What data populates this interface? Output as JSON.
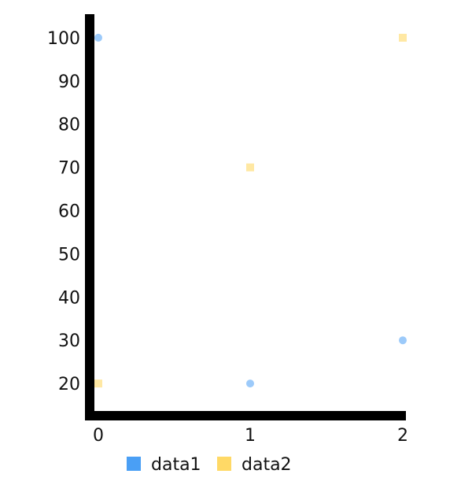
{
  "chart_data": {
    "type": "scatter",
    "x": [
      0,
      1,
      2
    ],
    "x_ticks": [
      "0",
      "1",
      "2"
    ],
    "y_ticks": [
      "20",
      "30",
      "40",
      "50",
      "60",
      "70",
      "80",
      "90",
      "100"
    ],
    "ylim": [
      11,
      107
    ],
    "grid": false,
    "legend_position": "bottom",
    "series": [
      {
        "name": "data1",
        "values": [
          100,
          20,
          30
        ],
        "color": "#4a9ff5",
        "marker": "circle"
      },
      {
        "name": "data2",
        "values": [
          20,
          70,
          100
        ],
        "color": "#ffd966",
        "marker": "square"
      }
    ]
  }
}
